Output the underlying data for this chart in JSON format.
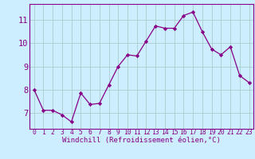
{
  "x": [
    0,
    1,
    2,
    3,
    4,
    5,
    6,
    7,
    8,
    9,
    10,
    11,
    12,
    13,
    14,
    15,
    16,
    17,
    18,
    19,
    20,
    21,
    22,
    23
  ],
  "y": [
    8.0,
    7.1,
    7.1,
    6.9,
    6.6,
    7.85,
    7.35,
    7.4,
    8.2,
    9.0,
    9.5,
    9.45,
    10.1,
    10.75,
    10.65,
    10.65,
    11.2,
    11.35,
    10.5,
    9.75,
    9.5,
    9.85,
    8.6,
    8.3
  ],
  "xlabel": "Windchill (Refroidissement éolien,°C)",
  "ylim": [
    6.3,
    11.7
  ],
  "yticks": [
    7,
    8,
    9,
    10,
    11
  ],
  "xticks": [
    0,
    1,
    2,
    3,
    4,
    5,
    6,
    7,
    8,
    9,
    10,
    11,
    12,
    13,
    14,
    15,
    16,
    17,
    18,
    19,
    20,
    21,
    22,
    23
  ],
  "line_color": "#880088",
  "marker_color": "#880088",
  "bg_color": "#cceeff",
  "grid_color": "#aacccc",
  "label_color": "#880088",
  "tick_color": "#880088",
  "axis_color": "#880088",
  "xlabel_fontsize": 6.5,
  "ytick_fontsize": 7.5,
  "xtick_fontsize": 5.8
}
